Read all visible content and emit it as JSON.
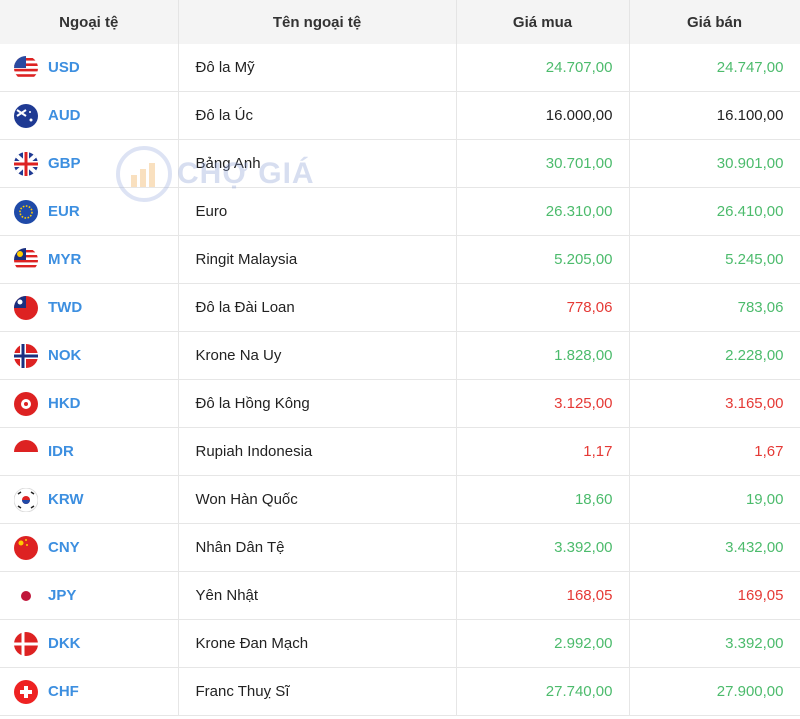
{
  "watermark": "CHỢ GIÁ",
  "table": {
    "headers": [
      "Ngoại tệ",
      "Tên ngoại tệ",
      "Giá mua",
      "Giá bán"
    ],
    "rows": [
      [
        "USD",
        "Đô la Mỹ",
        "24.707,00",
        "24.747,00"
      ],
      [
        "AUD",
        "Đô la Úc",
        "16.000,00",
        "16.100,00"
      ],
      [
        "GBP",
        "Bảng Anh",
        "30.701,00",
        "30.901,00"
      ],
      [
        "EUR",
        "Euro",
        "26.310,00",
        "26.410,00"
      ],
      [
        "MYR",
        "Ringit Malaysia",
        "5.205,00",
        "5.245,00"
      ],
      [
        "TWD",
        "Đô la Đài Loan",
        "778,06",
        "783,06"
      ],
      [
        "NOK",
        "Krone Na Uy",
        "1.828,00",
        "2.228,00"
      ],
      [
        "HKD",
        "Đô la Hồng Kông",
        "3.125,00",
        "3.165,00"
      ],
      [
        "IDR",
        "Rupiah Indonesia",
        "1,17",
        "1,67"
      ],
      [
        "KRW",
        "Won Hàn Quốc",
        "18,60",
        "19,00"
      ],
      [
        "CNY",
        "Nhân Dân Tệ",
        "3.392,00",
        "3.432,00"
      ],
      [
        "JPY",
        "Yên Nhật",
        "168,05",
        "169,05"
      ],
      [
        "DKK",
        "Krone Đan Mạch",
        "2.992,00",
        "3.392,00"
      ],
      [
        "CHF",
        "Franc Thuỵ Sĩ",
        "27.740,00",
        "27.900,00"
      ]
    ],
    "price_colors": [
      [
        "#4cbb6c",
        "#4cbb6c"
      ],
      [
        "#222222",
        "#222222"
      ],
      [
        "#4cbb6c",
        "#4cbb6c"
      ],
      [
        "#4cbb6c",
        "#4cbb6c"
      ],
      [
        "#4cbb6c",
        "#4cbb6c"
      ],
      [
        "#e53935",
        "#4cbb6c"
      ],
      [
        "#4cbb6c",
        "#4cbb6c"
      ],
      [
        "#e53935",
        "#e53935"
      ],
      [
        "#e53935",
        "#e53935"
      ],
      [
        "#4cbb6c",
        "#4cbb6c"
      ],
      [
        "#4cbb6c",
        "#4cbb6c"
      ],
      [
        "#e53935",
        "#e53935"
      ],
      [
        "#4cbb6c",
        "#4cbb6c"
      ],
      [
        "#4cbb6c",
        "#4cbb6c"
      ]
    ]
  }
}
